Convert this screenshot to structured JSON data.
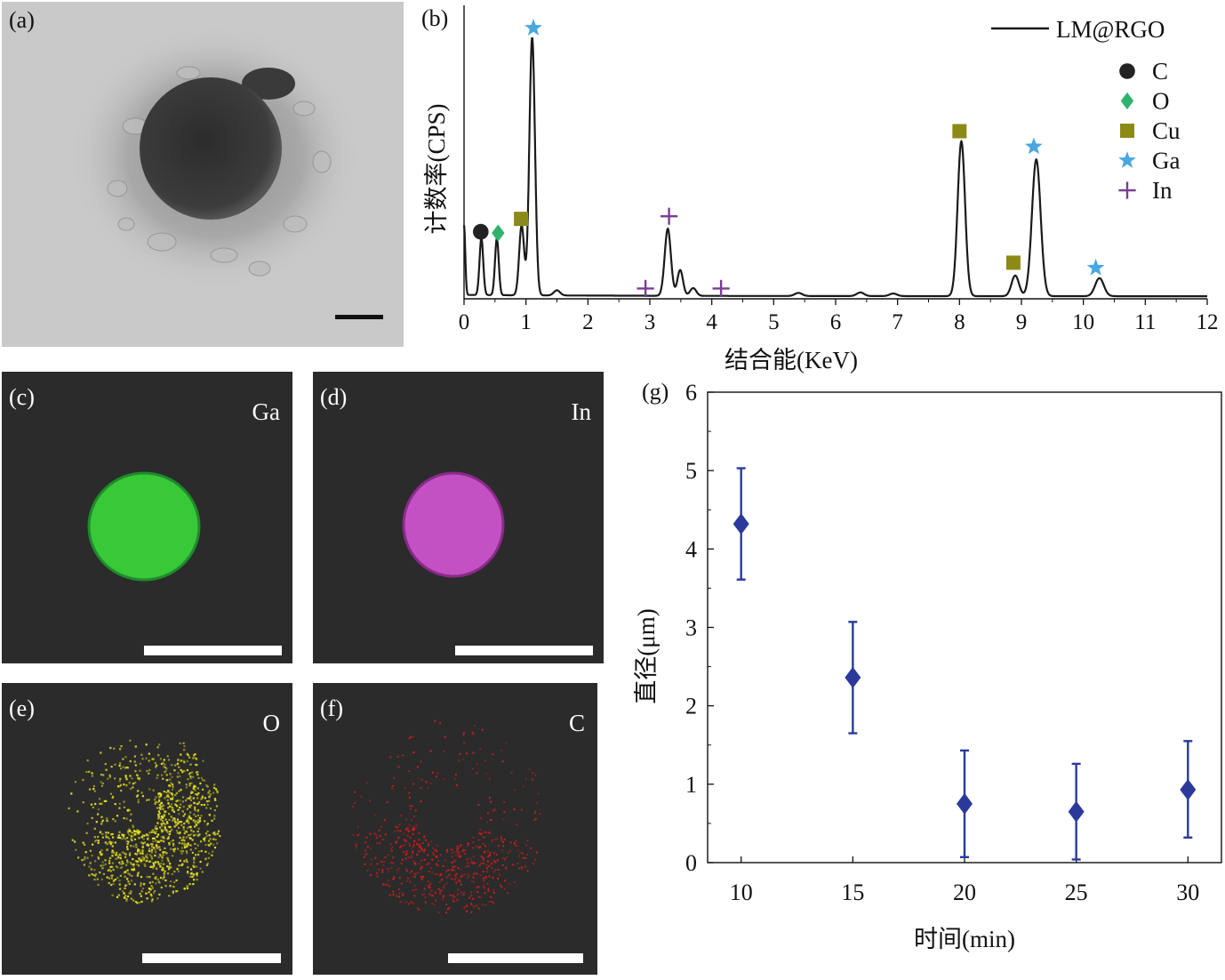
{
  "panels": {
    "a": {
      "label": "(a)"
    },
    "b": {
      "label": "(b)"
    },
    "c": {
      "label": "(c)",
      "element": "Ga"
    },
    "d": {
      "label": "(d)",
      "element": "In"
    },
    "e": {
      "label": "(e)",
      "element": "O"
    },
    "f": {
      "label": "(f)",
      "element": "C"
    },
    "g": {
      "label": "(g)"
    }
  },
  "colors": {
    "spectrum_line": "#1a1a1a",
    "C": "#222222",
    "O": "#2fb36c",
    "Cu": "#8c8a16",
    "Ga": "#4aa8e0",
    "In": "#7a3d92",
    "map_Ga": "#38c838",
    "map_In": "#c451c4",
    "map_O": "#e6e21e",
    "map_C": "#e01a1a",
    "scatter": "#2b3a9a",
    "map_bg": "#2b2b2b"
  },
  "chart_data": [
    {
      "type": "line",
      "title": "",
      "xlabel": "结合能(KeV)",
      "ylabel": "计数率(CPS)",
      "xlim": [
        0,
        12
      ],
      "xticks": [
        0,
        1,
        2,
        3,
        4,
        5,
        6,
        7,
        8,
        9,
        10,
        11,
        12
      ],
      "grid": false,
      "legend_position": "top-right",
      "series": [
        {
          "name": "LM@RGO"
        }
      ],
      "peaks": [
        {
          "x": 0.0,
          "height": 0.27,
          "width": 0.02
        },
        {
          "x": 0.28,
          "height": 0.22,
          "width": 0.03
        },
        {
          "x": 0.53,
          "height": 0.22,
          "width": 0.03
        },
        {
          "x": 0.93,
          "height": 0.27,
          "width": 0.04
        },
        {
          "x": 1.1,
          "height": 1.0,
          "width": 0.045
        },
        {
          "x": 1.5,
          "height": 0.02,
          "width": 0.05
        },
        {
          "x": 3.29,
          "height": 0.26,
          "width": 0.05
        },
        {
          "x": 3.49,
          "height": 0.1,
          "width": 0.045
        },
        {
          "x": 3.7,
          "height": 0.03,
          "width": 0.05
        },
        {
          "x": 5.4,
          "height": 0.012,
          "width": 0.06
        },
        {
          "x": 6.4,
          "height": 0.014,
          "width": 0.06
        },
        {
          "x": 6.93,
          "height": 0.01,
          "width": 0.06
        },
        {
          "x": 8.03,
          "height": 0.6,
          "width": 0.06
        },
        {
          "x": 8.9,
          "height": 0.08,
          "width": 0.06
        },
        {
          "x": 9.24,
          "height": 0.53,
          "width": 0.07
        },
        {
          "x": 10.26,
          "height": 0.07,
          "width": 0.07
        }
      ],
      "baseline": 0.01,
      "legend": [
        {
          "label": "C",
          "marker": "circle"
        },
        {
          "label": "O",
          "marker": "diamond"
        },
        {
          "label": "Cu",
          "marker": "square"
        },
        {
          "label": "Ga",
          "marker": "star"
        },
        {
          "label": "In",
          "marker": "plus"
        }
      ],
      "markers": [
        {
          "element": "C",
          "x": 0.27,
          "y": 0.26
        },
        {
          "element": "O",
          "x": 0.55,
          "y": 0.255
        },
        {
          "element": "Cu",
          "x": 0.92,
          "y": 0.31
        },
        {
          "element": "Ga",
          "x": 1.12,
          "y": 1.05
        },
        {
          "element": "In",
          "x": 2.93,
          "y": 0.04
        },
        {
          "element": "In",
          "x": 3.31,
          "y": 0.32
        },
        {
          "element": "In",
          "x": 4.15,
          "y": 0.04
        },
        {
          "element": "Cu",
          "x": 8.0,
          "y": 0.65
        },
        {
          "element": "Cu",
          "x": 8.87,
          "y": 0.14
        },
        {
          "element": "Ga",
          "x": 9.2,
          "y": 0.59
        },
        {
          "element": "Ga",
          "x": 10.2,
          "y": 0.12
        }
      ]
    },
    {
      "type": "scatter",
      "title": "",
      "xlabel": "时间(min)",
      "ylabel": "直径(μm)",
      "xlim": [
        8.5,
        31.5
      ],
      "ylim": [
        0,
        6
      ],
      "xticks": [
        10,
        15,
        20,
        25,
        30
      ],
      "yticks": [
        0,
        1,
        2,
        3,
        4,
        5,
        6
      ],
      "grid": false,
      "series": [
        {
          "x": [
            10,
            15,
            20,
            25,
            30
          ],
          "y": [
            4.32,
            2.36,
            0.75,
            0.65,
            0.93
          ],
          "yerr_low": [
            3.61,
            1.65,
            0.07,
            0.04,
            0.32
          ],
          "yerr_high": [
            5.03,
            3.07,
            1.43,
            1.26,
            1.55
          ]
        }
      ]
    }
  ]
}
